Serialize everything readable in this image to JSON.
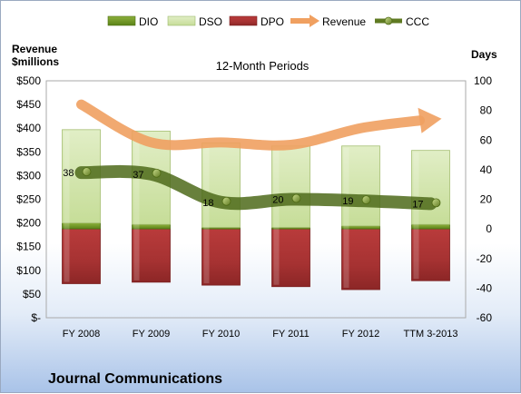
{
  "chart_data": {
    "type": "bar",
    "title": "12-Month Periods",
    "company": "Journal Communications",
    "categories": [
      "FY 2008",
      "FY 2009",
      "FY 2010",
      "FY 2011",
      "FY 2012",
      "TTM 3-2013"
    ],
    "left_axis": {
      "label_line1": "Revenue",
      "label_line2": "$millions",
      "ylim": [
        0,
        500
      ],
      "ticks": [
        0,
        50,
        100,
        150,
        200,
        250,
        300,
        350,
        400,
        450,
        500
      ],
      "tick_labels": [
        "$-",
        "$50",
        "$100",
        "$150",
        "$200",
        "$250",
        "$300",
        "$350",
        "$400",
        "$450",
        "$500"
      ]
    },
    "right_axis": {
      "label": "Days",
      "ylim": [
        -60,
        100
      ],
      "ticks": [
        -60,
        -40,
        -20,
        0,
        20,
        40,
        60,
        80,
        100
      ],
      "tick_labels": [
        "-60",
        "-40",
        "-20",
        "0",
        "20",
        "40",
        "60",
        "80",
        "100"
      ]
    },
    "legend_position": "top",
    "series": [
      {
        "name": "DIO",
        "axis": "right",
        "kind": "stacked-bar",
        "values": [
          4,
          3,
          1,
          1,
          2,
          3
        ],
        "color": "#6f9a22"
      },
      {
        "name": "DSO",
        "axis": "right",
        "kind": "stacked-bar",
        "values": [
          63,
          63,
          57,
          55,
          54,
          50
        ],
        "color": "#cfe3a4"
      },
      {
        "name": "DPO",
        "axis": "right",
        "kind": "stacked-bar-negative",
        "values": [
          -37,
          -36,
          -38,
          -39,
          -41,
          -35
        ],
        "color": "#b83a3a"
      },
      {
        "name": "Revenue",
        "axis": "left",
        "kind": "line-arrow",
        "values": [
          450,
          370,
          370,
          365,
          400,
          420
        ],
        "color": "#f0a060"
      },
      {
        "name": "CCC",
        "axis": "right",
        "kind": "line",
        "values": [
          38,
          37,
          18,
          20,
          19,
          17
        ],
        "data_labels": [
          "38",
          "37",
          "18",
          "20",
          "19",
          "17"
        ],
        "color": "#5f7a22"
      }
    ]
  }
}
